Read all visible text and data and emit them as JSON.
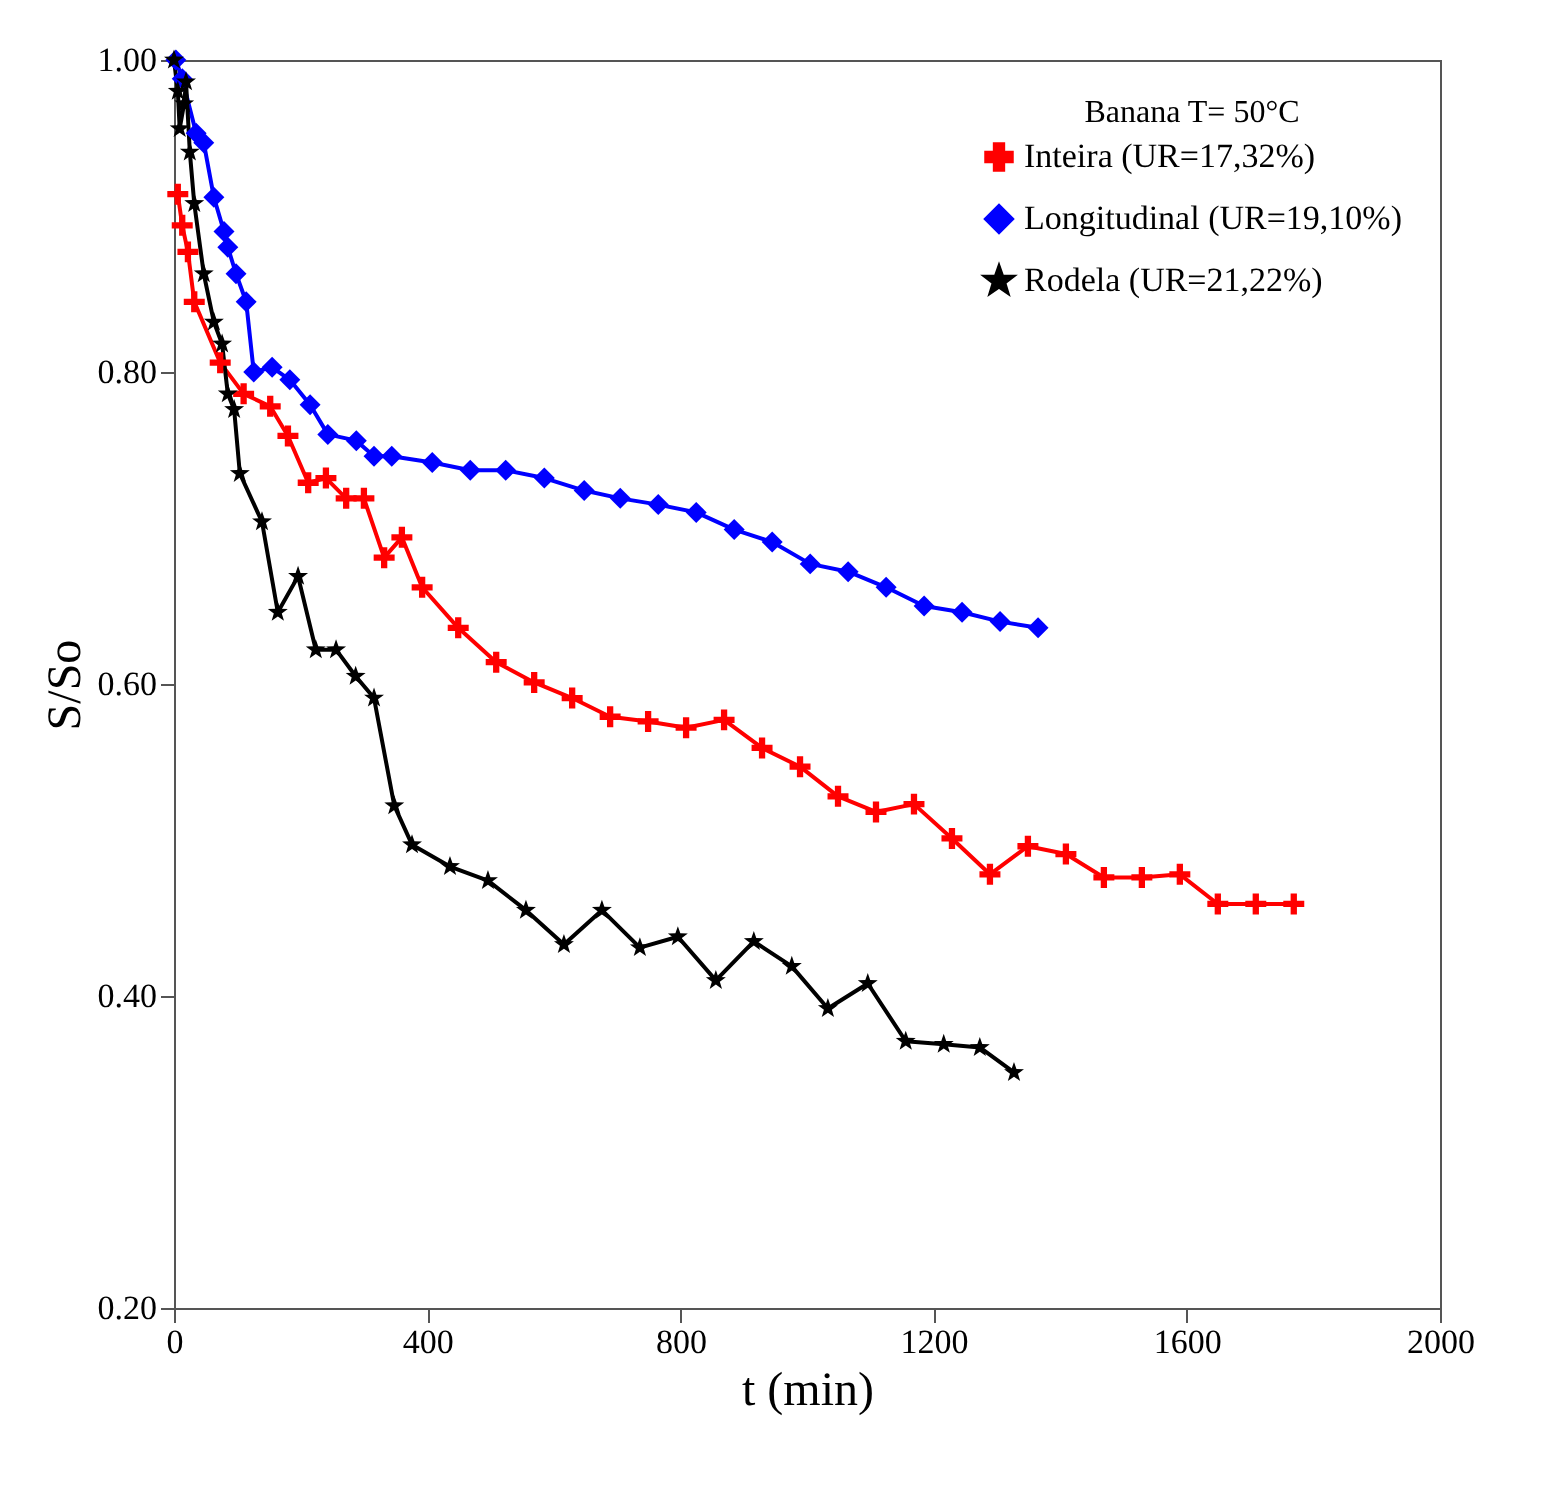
{
  "chart_data": {
    "type": "line",
    "xlabel": "t (min)",
    "ylabel": "S/So",
    "legend_title": "Banana T= 50°C",
    "legend": "top right",
    "xlim": [
      0,
      2000
    ],
    "xticks": [
      0,
      400,
      800,
      1200,
      1600,
      2000
    ],
    "ylim": [
      0.2,
      1.0
    ],
    "yticks": [
      {
        "value": 0.2,
        "label": "0.20"
      },
      {
        "value": 0.4,
        "label": "0.40"
      },
      {
        "value": 0.6,
        "label": "0.60"
      },
      {
        "value": 0.8,
        "label": "0.80"
      },
      {
        "value": 1.0,
        "label": "1.00"
      }
    ],
    "series": [
      {
        "name": "Inteira (UR=17,32%)",
        "color": "#ff0000",
        "marker": "cross",
        "x": [
          6,
          13,
          22,
          32,
          73,
          110,
          152,
          180,
          212,
          240,
          272,
          300,
          332,
          360,
          392,
          449,
          509,
          569,
          629,
          689,
          749,
          809,
          869,
          929,
          989,
          1049,
          1109,
          1169,
          1229,
          1289,
          1349,
          1409,
          1469,
          1529,
          1589,
          1649,
          1709,
          1769
        ],
        "values": [
          0.914,
          0.894,
          0.877,
          0.845,
          0.806,
          0.786,
          0.778,
          0.759,
          0.729,
          0.732,
          0.719,
          0.719,
          0.681,
          0.694,
          0.662,
          0.636,
          0.614,
          0.601,
          0.591,
          0.579,
          0.576,
          0.572,
          0.577,
          0.559,
          0.547,
          0.528,
          0.518,
          0.523,
          0.501,
          0.478,
          0.496,
          0.491,
          0.476,
          0.476,
          0.478,
          0.459,
          0.459,
          0.459
        ]
      },
      {
        "name": "Longitudinal (UR=19,10%)",
        "color": "#0000ff",
        "marker": "diamond",
        "x": [
          3,
          13,
          35,
          47,
          63,
          79,
          85,
          98,
          114,
          126,
          155,
          183,
          215,
          243,
          288,
          316,
          344,
          408,
          468,
          524,
          585,
          648,
          705,
          765,
          825,
          885,
          945,
          1005,
          1065,
          1125,
          1185,
          1245,
          1305,
          1365
        ],
        "values": [
          1.0,
          0.988,
          0.953,
          0.947,
          0.912,
          0.89,
          0.88,
          0.863,
          0.845,
          0.8,
          0.803,
          0.795,
          0.779,
          0.76,
          0.756,
          0.746,
          0.746,
          0.742,
          0.737,
          0.737,
          0.732,
          0.724,
          0.719,
          0.715,
          0.71,
          0.699,
          0.691,
          0.677,
          0.672,
          0.662,
          0.65,
          0.646,
          0.64,
          0.636
        ]
      },
      {
        "name": "Rodela (UR=21,22%)",
        "color": "#000000",
        "marker": "star",
        "x": [
          0,
          6,
          9,
          16,
          19,
          25,
          32,
          47,
          63,
          76,
          85,
          95,
          104,
          139,
          164,
          196,
          224,
          256,
          287,
          316,
          348,
          376,
          436,
          496,
          556,
          616,
          676,
          736,
          796,
          856,
          916,
          976,
          1033,
          1096,
          1156,
          1216,
          1273,
          1327
        ],
        "values": [
          1.0,
          0.98,
          0.956,
          0.972,
          0.986,
          0.941,
          0.908,
          0.863,
          0.832,
          0.818,
          0.786,
          0.776,
          0.735,
          0.704,
          0.646,
          0.669,
          0.622,
          0.622,
          0.605,
          0.591,
          0.522,
          0.497,
          0.483,
          0.474,
          0.455,
          0.433,
          0.455,
          0.431,
          0.438,
          0.41,
          0.435,
          0.419,
          0.392,
          0.408,
          0.371,
          0.369,
          0.367,
          0.351
        ]
      }
    ]
  }
}
